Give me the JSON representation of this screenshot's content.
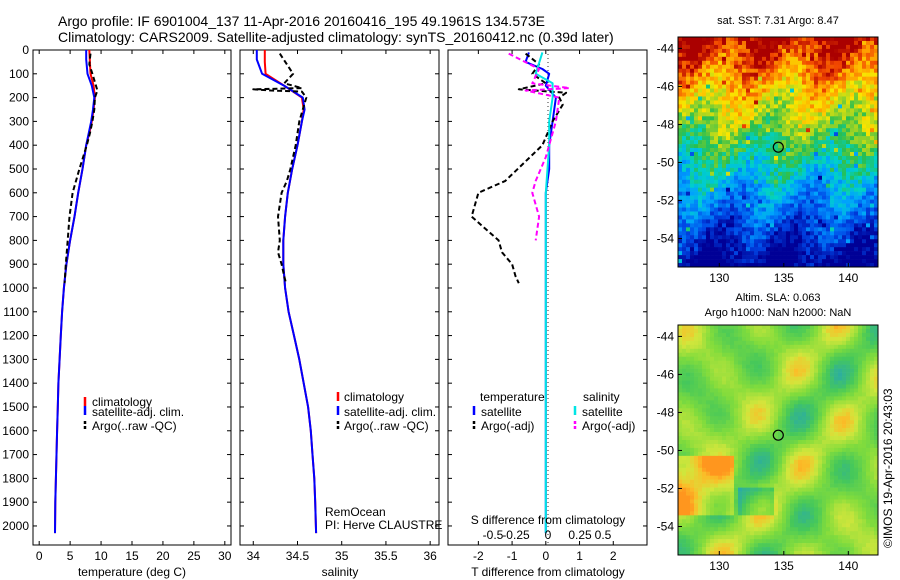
{
  "header": {
    "title_line1": "Argo profile: IF 6901004_137 11-Apr-2016 20160416_195 49.1961S 134.573E",
    "title_line2": "Climatology: CARS2009. Satellite-adjusted climatology: synTS_20160412.nc (0.39d later)"
  },
  "colors": {
    "climatology": "#ff0000",
    "satellite": "#0000ff",
    "argo": "#000000",
    "satellite_salinity": "#00e5e5",
    "argo_salinity": "#ff00ff"
  },
  "depth_axis": {
    "range": [
      0,
      2080
    ],
    "ticks": [
      0,
      100,
      200,
      300,
      400,
      500,
      600,
      700,
      800,
      900,
      1000,
      1100,
      1200,
      1300,
      1400,
      1500,
      1600,
      1700,
      1800,
      1900,
      2000
    ]
  },
  "chart_data": [
    {
      "type": "line",
      "panel": "temperature",
      "xlabel": "temperature (deg C)",
      "xlim": [
        -1,
        31
      ],
      "xticks": [
        0,
        5,
        10,
        15,
        20,
        25,
        30
      ],
      "legend": [
        "climatology",
        "satellite-adj. clim.",
        "Argo(..raw -QC)"
      ],
      "series": [
        {
          "name": "climatology",
          "x": [
            8.1,
            8.2,
            8.3,
            8.8,
            9.0,
            8.8,
            8.5,
            8.1,
            7.6,
            7.0,
            6.3,
            5.7,
            5.0,
            4.4,
            4.0,
            3.7,
            3.5,
            3.3,
            3.1,
            3.0,
            2.9,
            2.8,
            2.7,
            2.6,
            2.55
          ],
          "depth": [
            0,
            50,
            100,
            150,
            200,
            250,
            300,
            350,
            400,
            500,
            600,
            700,
            800,
            900,
            1000,
            1100,
            1200,
            1300,
            1400,
            1500,
            1600,
            1700,
            1800,
            1900,
            2030
          ]
        },
        {
          "name": "satellite-adj. clim.",
          "x": [
            7.6,
            7.6,
            7.8,
            8.5,
            8.9,
            8.7,
            8.4,
            8.0,
            7.6,
            7.0,
            6.3,
            5.7,
            5.0,
            4.4,
            4.0,
            3.7,
            3.5,
            3.3,
            3.1,
            3.0,
            2.9,
            2.8,
            2.7,
            2.6,
            2.55
          ],
          "depth": [
            0,
            40,
            100,
            150,
            200,
            250,
            300,
            350,
            400,
            500,
            600,
            700,
            800,
            900,
            1000,
            1100,
            1200,
            1300,
            1400,
            1500,
            1600,
            1700,
            1800,
            1900,
            2030
          ]
        },
        {
          "name": "Argo(..raw -QC)",
          "x": [
            8.3,
            8.1,
            8.6,
            9.4,
            9.0,
            8.9,
            8.6,
            8.2,
            7.7,
            6.5,
            5.4,
            4.9,
            4.6,
            4.3,
            4.1
          ],
          "depth": [
            15,
            60,
            100,
            170,
            200,
            250,
            300,
            350,
            400,
            500,
            600,
            700,
            800,
            900,
            980
          ]
        }
      ]
    },
    {
      "type": "line",
      "panel": "salinity",
      "xlabel": "salinity",
      "xlim": [
        33.85,
        36.1
      ],
      "xticks": [
        34,
        34.5,
        35,
        35.5,
        36
      ],
      "legend": [
        "climatology",
        "satellite-adj. clim.",
        "Argo(..raw -QC)"
      ],
      "annotation": [
        "RemOcean",
        "PI: Herve CLAUSTRE"
      ],
      "series": [
        {
          "name": "climatology",
          "x": [
            34.13,
            34.13,
            34.14,
            34.35,
            34.55,
            34.57,
            34.55,
            34.5,
            34.44,
            34.39,
            34.36,
            34.34,
            34.34,
            34.36,
            34.4,
            34.46,
            34.52,
            34.57,
            34.62,
            34.65,
            34.67,
            34.69,
            34.7,
            34.71
          ],
          "depth": [
            0,
            50,
            100,
            150,
            200,
            250,
            300,
            400,
            500,
            600,
            700,
            800,
            900,
            1000,
            1100,
            1200,
            1300,
            1400,
            1500,
            1600,
            1700,
            1800,
            1900,
            2030
          ]
        },
        {
          "name": "satellite-adj. clim.",
          "x": [
            34.04,
            34.04,
            34.1,
            34.35,
            34.56,
            34.58,
            34.55,
            34.5,
            34.44,
            34.39,
            34.36,
            34.34,
            34.34,
            34.36,
            34.4,
            34.46,
            34.52,
            34.57,
            34.62,
            34.65,
            34.67,
            34.69,
            34.7,
            34.71
          ],
          "depth": [
            0,
            40,
            100,
            150,
            200,
            250,
            300,
            400,
            500,
            600,
            700,
            800,
            900,
            1000,
            1100,
            1200,
            1300,
            1400,
            1500,
            1600,
            1700,
            1800,
            1900,
            2030
          ]
        },
        {
          "name": "Argo(..raw -QC)",
          "x": [
            34.3,
            34.45,
            34.35,
            34.55,
            34.0,
            34.2,
            34.55,
            34.6,
            34.52,
            34.48,
            34.42,
            34.38,
            34.32,
            34.28,
            34.3,
            34.28,
            34.32,
            34.35,
            34.37
          ],
          "depth": [
            15,
            100,
            140,
            160,
            165,
            170,
            175,
            200,
            300,
            400,
            500,
            550,
            600,
            700,
            800,
            850,
            900,
            950,
            980
          ]
        }
      ]
    },
    {
      "type": "line",
      "panel": "difference",
      "xlabel": "T difference from climatology",
      "xlabel_top": "S difference from climatology",
      "xlim": [
        -2.9,
        3.0
      ],
      "xticks": [
        -2,
        -1,
        0,
        1,
        2
      ],
      "x2ticks": [
        "-0.5",
        "-0.25",
        "0",
        "0.25",
        "0.5"
      ],
      "legend_headers": [
        "temperature",
        "salinity"
      ],
      "legend": [
        "satellite",
        "Argo(-adj)",
        "satellite",
        "Argo(-adj)"
      ],
      "series": [
        {
          "name": "temperature satellite",
          "x": [
            -0.5,
            -0.6,
            -0.1,
            0.1,
            0.0,
            0.3,
            0.2,
            0.1,
            0.1,
            0.0,
            0.0,
            0.0,
            0.0,
            0.0
          ],
          "depth": [
            10,
            50,
            80,
            100,
            150,
            200,
            300,
            400,
            500,
            600,
            800,
            1200,
            1600,
            2030
          ]
        },
        {
          "name": "temperature Argo(-adj)",
          "x": [
            -0.6,
            -0.2,
            -0.4,
            0.0,
            -0.8,
            0.6,
            0.4,
            0.5,
            0.2,
            -0.1,
            -1.2,
            -2.0,
            -2.2,
            -1.8,
            -1.4,
            -1.3,
            -1.0,
            -0.9,
            -0.8
          ],
          "depth": [
            15,
            60,
            100,
            140,
            165,
            180,
            200,
            230,
            300,
            400,
            550,
            600,
            700,
            750,
            800,
            850,
            900,
            950,
            980
          ]
        },
        {
          "name": "salinity satellite",
          "x": [
            -0.1,
            -0.3,
            0.2,
            0.2,
            0.1,
            0.1,
            0.05,
            0.0,
            0.0,
            0.0,
            0.0,
            0.0
          ],
          "depth": [
            10,
            100,
            140,
            200,
            300,
            400,
            500,
            600,
            800,
            1200,
            1600,
            2030
          ]
        },
        {
          "name": "salinity Argo(-adj)",
          "x": [
            -1.1,
            -0.2,
            -0.4,
            0.7,
            -0.6,
            0.4,
            0.3,
            0.0,
            -0.3,
            -0.4,
            -0.2,
            -0.3
          ],
          "depth": [
            15,
            80,
            140,
            160,
            170,
            200,
            300,
            450,
            550,
            600,
            700,
            800
          ]
        }
      ]
    },
    {
      "type": "heatmap",
      "panel": "sst_map",
      "title": "sat. SST: 7.31 Argo: 8.47",
      "xlim": [
        126.8,
        142.3
      ],
      "ylim": [
        -55.5,
        -43.4
      ],
      "xticks": [
        130,
        135,
        140
      ],
      "yticks": [
        -44,
        -46,
        -48,
        -50,
        -52,
        -54
      ],
      "marker": {
        "lon": 134.573,
        "lat": -49.1961
      }
    },
    {
      "type": "heatmap",
      "panel": "sla_map",
      "title_line1": "Altim. SLA: 0.063",
      "title_line2": "Argo h1000: NaN h2000: NaN",
      "xlim": [
        126.8,
        142.3
      ],
      "ylim": [
        -55.5,
        -43.4
      ],
      "xticks": [
        130,
        135,
        140
      ],
      "yticks": [
        -44,
        -46,
        -48,
        -50,
        -52,
        -54
      ],
      "marker": {
        "lon": 134.573,
        "lat": -49.1961
      }
    }
  ],
  "footer": {
    "credit": "©IMOS 19-Apr-2016 20:43:03"
  }
}
